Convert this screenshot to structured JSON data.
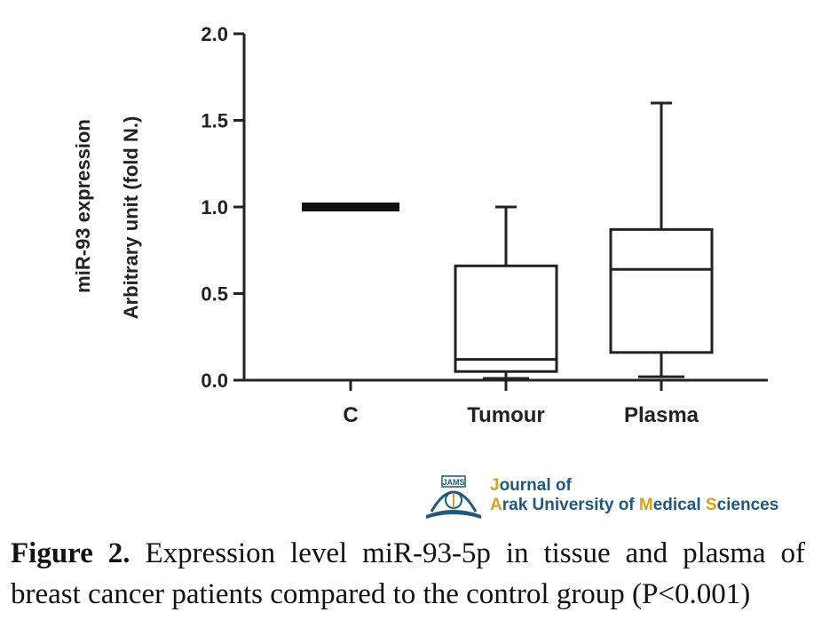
{
  "chart_data": {
    "type": "box",
    "ylabel_line1": "miR-93 expression",
    "ylabel_line2": "Arbitrary unit (fold N.)",
    "ylim": [
      0,
      2.0
    ],
    "yticks": [
      "0.0",
      "0.5",
      "1.0",
      "1.5",
      "2.0"
    ],
    "categories": [
      "C",
      "Tumour",
      "Plasma"
    ],
    "boxes": [
      {
        "name": "C",
        "min": 1.0,
        "q1": 1.0,
        "median": 1.0,
        "q3": 1.0,
        "max": 1.0
      },
      {
        "name": "Tumour",
        "min": 0.01,
        "q1": 0.05,
        "median": 0.12,
        "q3": 0.66,
        "max": 1.0
      },
      {
        "name": "Plasma",
        "min": 0.02,
        "q1": 0.16,
        "median": 0.64,
        "q3": 0.87,
        "max": 1.6
      }
    ]
  },
  "logo": {
    "emblem_text": "JAMS",
    "line1_first": "J",
    "line1_rest": "ournal of",
    "line2_a": "A",
    "line2_b": "rak University of ",
    "line2_c": "M",
    "line2_d": "edical ",
    "line2_e": "S",
    "line2_f": "ciences"
  },
  "caption": {
    "figure_label": "Figure 2.",
    "text": "Expression level miR-93-5p in tissue and plasma of breast cancer patients compared to the control group (P<0.001)"
  }
}
